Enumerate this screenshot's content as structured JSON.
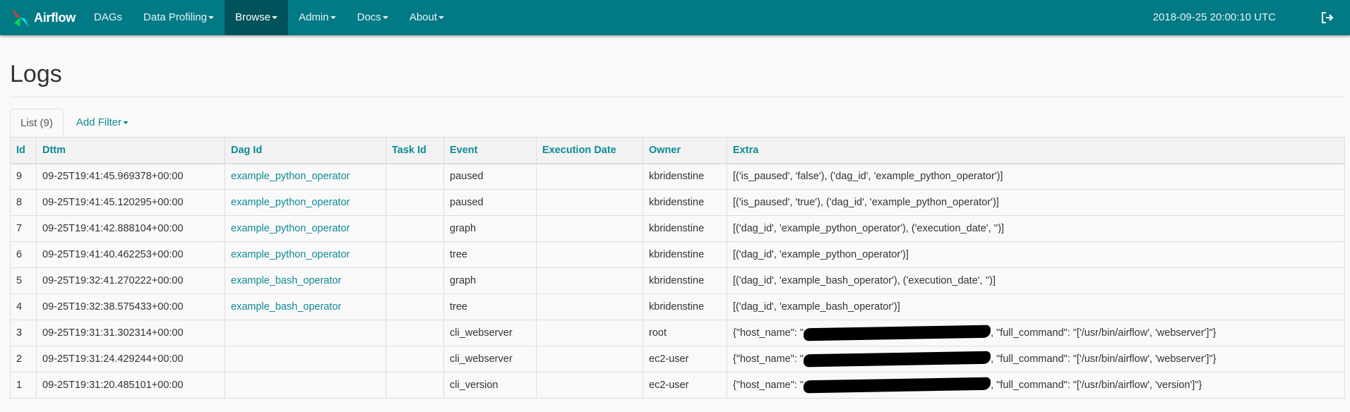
{
  "navbar": {
    "brand": "Airflow",
    "items": [
      {
        "label": "DAGs",
        "dropdown": false,
        "active": false
      },
      {
        "label": "Data Profiling",
        "dropdown": true,
        "active": false
      },
      {
        "label": "Browse",
        "dropdown": true,
        "active": true
      },
      {
        "label": "Admin",
        "dropdown": true,
        "active": false
      },
      {
        "label": "Docs",
        "dropdown": true,
        "active": false
      },
      {
        "label": "About",
        "dropdown": true,
        "active": false
      }
    ],
    "clock": "2018-09-25 20:00:10 UTC",
    "logout_icon": "sign-out-icon"
  },
  "page": {
    "title": "Logs"
  },
  "tabs": {
    "list": "List (9)",
    "add_filter": "Add Filter"
  },
  "table": {
    "columns": [
      "Id",
      "Dttm",
      "Dag Id",
      "Task Id",
      "Event",
      "Execution Date",
      "Owner",
      "Extra"
    ],
    "rows": [
      {
        "id": "9",
        "dttm": "09-25T19:41:45.969378+00:00",
        "dag_id": "example_python_operator",
        "task_id": "",
        "event": "paused",
        "execution_date": "",
        "owner": "kbridenstine",
        "extra": "[('is_paused', 'false'), ('dag_id', 'example_python_operator')]"
      },
      {
        "id": "8",
        "dttm": "09-25T19:41:45.120295+00:00",
        "dag_id": "example_python_operator",
        "task_id": "",
        "event": "paused",
        "execution_date": "",
        "owner": "kbridenstine",
        "extra": "[('is_paused', 'true'), ('dag_id', 'example_python_operator')]"
      },
      {
        "id": "7",
        "dttm": "09-25T19:41:42.888104+00:00",
        "dag_id": "example_python_operator",
        "task_id": "",
        "event": "graph",
        "execution_date": "",
        "owner": "kbridenstine",
        "extra": "[('dag_id', 'example_python_operator'), ('execution_date', '')]"
      },
      {
        "id": "6",
        "dttm": "09-25T19:41:40.462253+00:00",
        "dag_id": "example_python_operator",
        "task_id": "",
        "event": "tree",
        "execution_date": "",
        "owner": "kbridenstine",
        "extra": "[('dag_id', 'example_python_operator')]"
      },
      {
        "id": "5",
        "dttm": "09-25T19:32:41.270222+00:00",
        "dag_id": "example_bash_operator",
        "task_id": "",
        "event": "graph",
        "execution_date": "",
        "owner": "kbridenstine",
        "extra": "[('dag_id', 'example_bash_operator'), ('execution_date', '')]"
      },
      {
        "id": "4",
        "dttm": "09-25T19:32:38.575433+00:00",
        "dag_id": "example_bash_operator",
        "task_id": "",
        "event": "tree",
        "execution_date": "",
        "owner": "kbridenstine",
        "extra": "[('dag_id', 'example_bash_operator')]"
      },
      {
        "id": "3",
        "dttm": "09-25T19:31:31.302314+00:00",
        "dag_id": "",
        "task_id": "",
        "event": "cli_webserver",
        "execution_date": "",
        "owner": "root",
        "extra_prefix": "{\"host_name\": \"",
        "extra_suffix": ", \"full_command\": \"['/usr/bin/airflow', 'webserver']\"}",
        "redacted": true
      },
      {
        "id": "2",
        "dttm": "09-25T19:31:24.429244+00:00",
        "dag_id": "",
        "task_id": "",
        "event": "cli_webserver",
        "execution_date": "",
        "owner": "ec2-user",
        "extra_prefix": "{\"host_name\": \"",
        "extra_suffix": ", \"full_command\": \"['/usr/bin/airflow', 'webserver']\"}",
        "redacted": true
      },
      {
        "id": "1",
        "dttm": "09-25T19:31:20.485101+00:00",
        "dag_id": "",
        "task_id": "",
        "event": "cli_version",
        "execution_date": "",
        "owner": "ec2-user",
        "extra_prefix": "{\"host_name\": \"",
        "extra_suffix": ", \"full_command\": \"['/usr/bin/airflow', 'version']\"}",
        "redacted": true
      }
    ]
  },
  "colors": {
    "navbar": "#017a85",
    "navbar_active": "#00535b",
    "link": "#0e8b96"
  }
}
